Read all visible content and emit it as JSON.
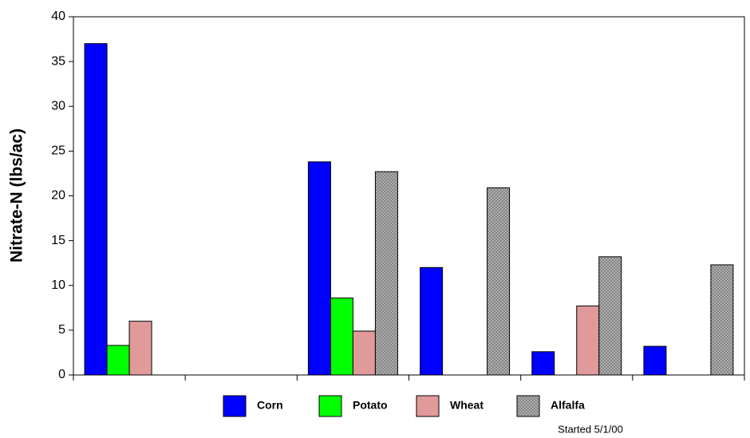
{
  "chart_data": {
    "type": "bar",
    "y_label": "Nitrate-N (lbs/ac)",
    "annotation": "Started 5/1/00",
    "categories": [
      null,
      null,
      null,
      null,
      null,
      null
    ],
    "series": [
      {
        "name": "Corn",
        "color": "#0000ff",
        "values": [
          37,
          null,
          23.8,
          12,
          2.6,
          3.2
        ]
      },
      {
        "name": "Potato",
        "color": "#00ff00",
        "values": [
          3.3,
          null,
          8.6,
          null,
          null,
          null
        ]
      },
      {
        "name": "Wheat",
        "color": "#e09a9a",
        "values": [
          6,
          null,
          4.9,
          null,
          7.7,
          null
        ]
      },
      {
        "name": "Alfalfa",
        "color": "#808080",
        "values": [
          null,
          null,
          22.7,
          20.9,
          13.2,
          12.3
        ]
      }
    ],
    "ylim": [
      0,
      40
    ],
    "yticks": [
      0,
      5,
      10,
      15,
      20,
      25,
      30,
      35,
      40
    ]
  }
}
